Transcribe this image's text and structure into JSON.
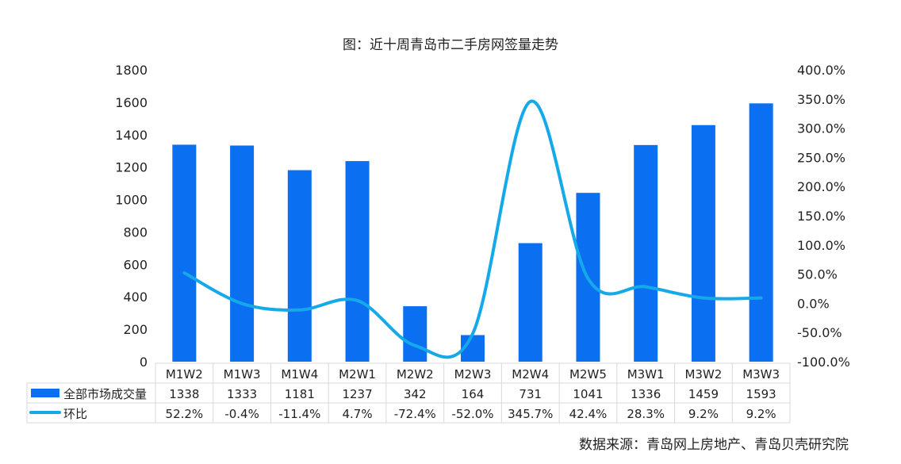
{
  "chart_data": {
    "type": "bar+line",
    "title": "图：近十周青岛市二手房网签量走势",
    "source": "数据来源：青岛网上房地产、青岛贝壳研究院",
    "categories": [
      "M1W2",
      "M1W3",
      "M1W4",
      "M2W1",
      "M2W2",
      "M2W3",
      "M2W4",
      "M2W5",
      "M3W1",
      "M3W2",
      "M3W3"
    ],
    "series": [
      {
        "name": "全部市场成交量",
        "type": "bar",
        "axis": "left",
        "color": "#0a6ff0",
        "values": [
          1338,
          1333,
          1181,
          1237,
          342,
          164,
          731,
          1041,
          1336,
          1459,
          1593
        ],
        "labels": [
          "1338",
          "1333",
          "1181",
          "1237",
          "342",
          "164",
          "731",
          "1041",
          "1336",
          "1459",
          "1593"
        ]
      },
      {
        "name": "环比",
        "type": "line",
        "axis": "right",
        "color": "#16a9e9",
        "values": [
          52.2,
          -0.4,
          -11.4,
          4.7,
          -72.4,
          -52.0,
          345.7,
          42.4,
          28.3,
          9.2,
          9.2
        ],
        "labels": [
          "52.2%",
          "-0.4%",
          "-11.4%",
          "4.7%",
          "-72.4%",
          "-52.0%",
          "345.7%",
          "42.4%",
          "28.3%",
          "9.2%",
          "9.2%"
        ]
      }
    ],
    "left_axis": {
      "range": [
        0,
        1800
      ],
      "ticks": [
        "0",
        "200",
        "400",
        "600",
        "800",
        "1000",
        "1200",
        "1400",
        "1600",
        "1800"
      ]
    },
    "right_axis": {
      "range": [
        -100,
        400
      ],
      "ticks": [
        "-100.0%",
        "-50.0%",
        "0.0%",
        "50.0%",
        "100.0%",
        "150.0%",
        "200.0%",
        "250.0%",
        "300.0%",
        "350.0%",
        "400.0%"
      ]
    },
    "grid": false,
    "legend": "data-table-bottom"
  }
}
